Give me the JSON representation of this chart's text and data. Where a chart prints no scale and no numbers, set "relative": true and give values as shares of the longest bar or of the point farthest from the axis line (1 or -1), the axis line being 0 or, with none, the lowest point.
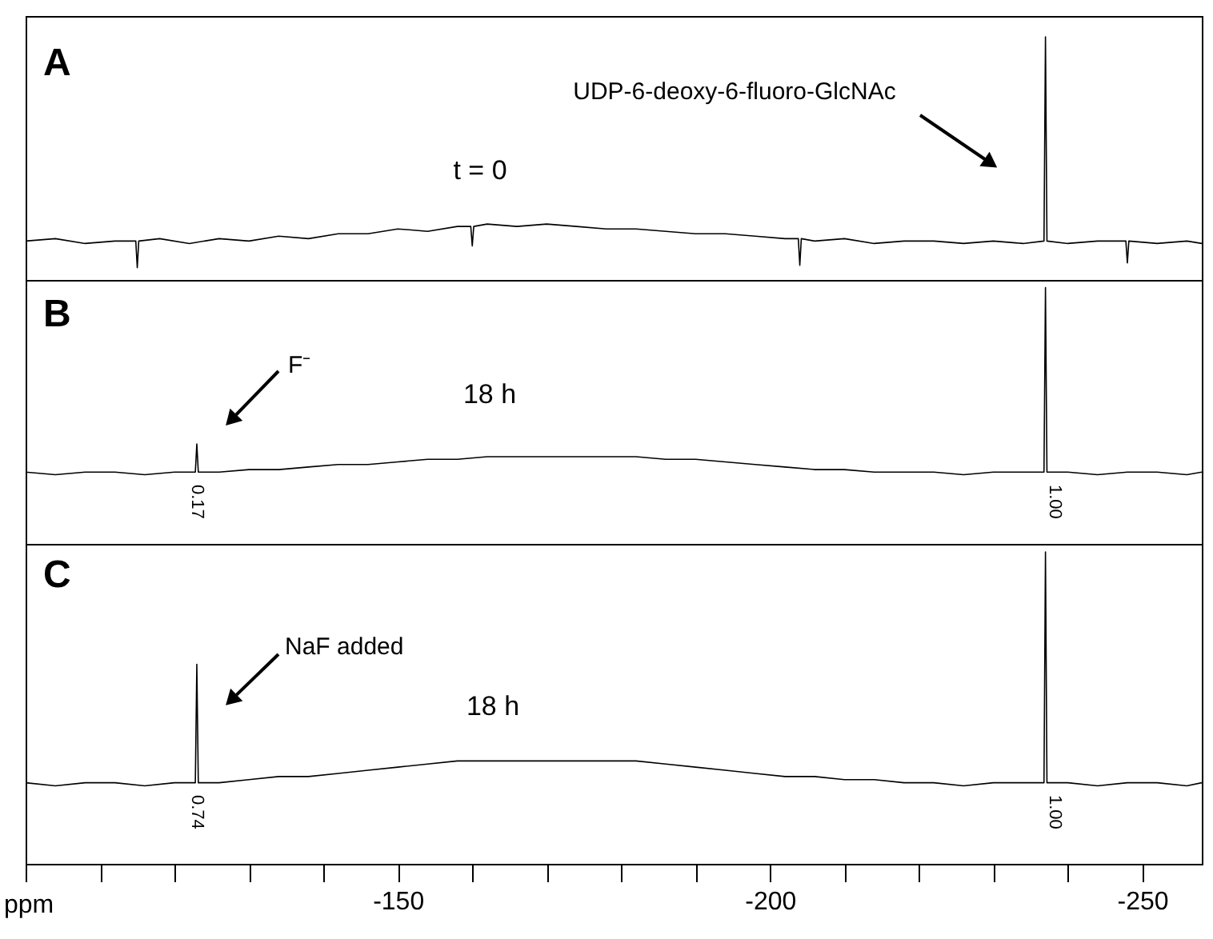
{
  "chart_data": [
    {
      "type": "line",
      "relative": true,
      "xlim": [
        -100,
        -258
      ],
      "tick_labels": false,
      "annotations": [
        "A",
        "t = 0",
        "UDP-6-deoxy-6-fluoro-GlcNAc"
      ],
      "series": [
        {
          "color": "#000000",
          "x": [
            -100,
            -104,
            -108,
            -112,
            -114.8,
            -115,
            -115.2,
            -118,
            -122,
            -126,
            -130,
            -134,
            -138,
            -142,
            -146,
            -150,
            -154,
            -158,
            -159.8,
            -160,
            -160.2,
            -162,
            -166,
            -170,
            -174,
            -178,
            -182,
            -186,
            -190,
            -194,
            -198,
            -202,
            -203.8,
            -204,
            -204.2,
            -206,
            -210,
            -214,
            -218,
            -222,
            -226,
            -230,
            -234,
            -236.8,
            -237,
            -237.2,
            -240,
            -244,
            -247.8,
            -248,
            -248.2,
            -252,
            -256,
            -258
          ],
          "values": [
            0.16,
            0.17,
            0.15,
            0.16,
            0.16,
            0.05,
            0.16,
            0.17,
            0.15,
            0.17,
            0.16,
            0.18,
            0.17,
            0.19,
            0.19,
            0.21,
            0.2,
            0.22,
            0.22,
            0.14,
            0.22,
            0.23,
            0.22,
            0.23,
            0.22,
            0.21,
            0.21,
            0.2,
            0.19,
            0.19,
            0.18,
            0.17,
            0.17,
            0.06,
            0.17,
            0.16,
            0.17,
            0.15,
            0.16,
            0.16,
            0.15,
            0.16,
            0.15,
            0.16,
            1,
            0.16,
            0.15,
            0.16,
            0.16,
            0.07,
            0.16,
            0.15,
            0.16,
            0.15
          ]
        }
      ]
    },
    {
      "type": "line",
      "relative": true,
      "xlim": [
        -100,
        -258
      ],
      "tick_labels": false,
      "annotations": [
        "B",
        "18 h",
        "F⁻",
        "0.17",
        "1.00"
      ],
      "series": [
        {
          "color": "#000000",
          "x": [
            -100,
            -104,
            -108,
            -112,
            -116,
            -120,
            -122.8,
            -123,
            -123.2,
            -126,
            -130,
            -134,
            -138,
            -142,
            -146,
            -150,
            -154,
            -158,
            -162,
            -166,
            -170,
            -174,
            -178,
            -182,
            -186,
            -190,
            -194,
            -198,
            -202,
            -206,
            -210,
            -214,
            -218,
            -222,
            -226,
            -230,
            -234,
            -236.8,
            -237,
            -237.2,
            -240,
            -244,
            -248,
            -252,
            -256,
            -258
          ],
          "values": [
            0.28,
            0.27,
            0.28,
            0.28,
            0.27,
            0.28,
            0.28,
            0.39,
            0.28,
            0.28,
            0.29,
            0.29,
            0.3,
            0.31,
            0.31,
            0.32,
            0.33,
            0.33,
            0.34,
            0.34,
            0.34,
            0.34,
            0.34,
            0.34,
            0.33,
            0.33,
            0.32,
            0.31,
            0.3,
            0.29,
            0.29,
            0.28,
            0.28,
            0.28,
            0.27,
            0.28,
            0.28,
            0.28,
            1,
            0.28,
            0.28,
            0.27,
            0.28,
            0.28,
            0.27,
            0.28
          ]
        }
      ]
    },
    {
      "type": "line",
      "relative": true,
      "xlabel": "ppm",
      "xlim": [
        -100,
        -258
      ],
      "xticks": [
        {
          "value": -100,
          "label": null
        },
        {
          "value": -110,
          "label": null
        },
        {
          "value": -120,
          "label": null
        },
        {
          "value": -130,
          "label": null
        },
        {
          "value": -140,
          "label": null
        },
        -150,
        {
          "value": -160,
          "label": null
        },
        {
          "value": -170,
          "label": null
        },
        {
          "value": -180,
          "label": null
        },
        {
          "value": -190,
          "label": null
        },
        -200,
        {
          "value": -210,
          "label": null
        },
        {
          "value": -220,
          "label": null
        },
        {
          "value": -230,
          "label": null
        },
        {
          "value": -240,
          "label": null
        },
        -250
      ],
      "tick_labels": "x",
      "annotations": [
        "C",
        "18 h",
        "NaF added",
        "0.74",
        "1.00"
      ],
      "series": [
        {
          "color": "#000000",
          "x": [
            -100,
            -104,
            -108,
            -112,
            -116,
            -120,
            -122.8,
            -123,
            -123.2,
            -126,
            -130,
            -134,
            -138,
            -142,
            -146,
            -150,
            -154,
            -158,
            -162,
            -166,
            -170,
            -174,
            -178,
            -182,
            -186,
            -190,
            -194,
            -198,
            -202,
            -206,
            -210,
            -214,
            -218,
            -222,
            -226,
            -230,
            -234,
            -236.8,
            -237,
            -237.2,
            -240,
            -244,
            -248,
            -252,
            -256,
            -258
          ],
          "values": [
            0.26,
            0.25,
            0.26,
            0.26,
            0.25,
            0.26,
            0.26,
            0.64,
            0.26,
            0.26,
            0.27,
            0.28,
            0.28,
            0.29,
            0.3,
            0.31,
            0.32,
            0.33,
            0.33,
            0.33,
            0.33,
            0.33,
            0.33,
            0.33,
            0.32,
            0.31,
            0.3,
            0.29,
            0.28,
            0.28,
            0.27,
            0.27,
            0.26,
            0.26,
            0.25,
            0.26,
            0.26,
            0.26,
            1,
            0.26,
            0.26,
            0.25,
            0.26,
            0.26,
            0.25,
            0.26
          ]
        }
      ]
    }
  ]
}
